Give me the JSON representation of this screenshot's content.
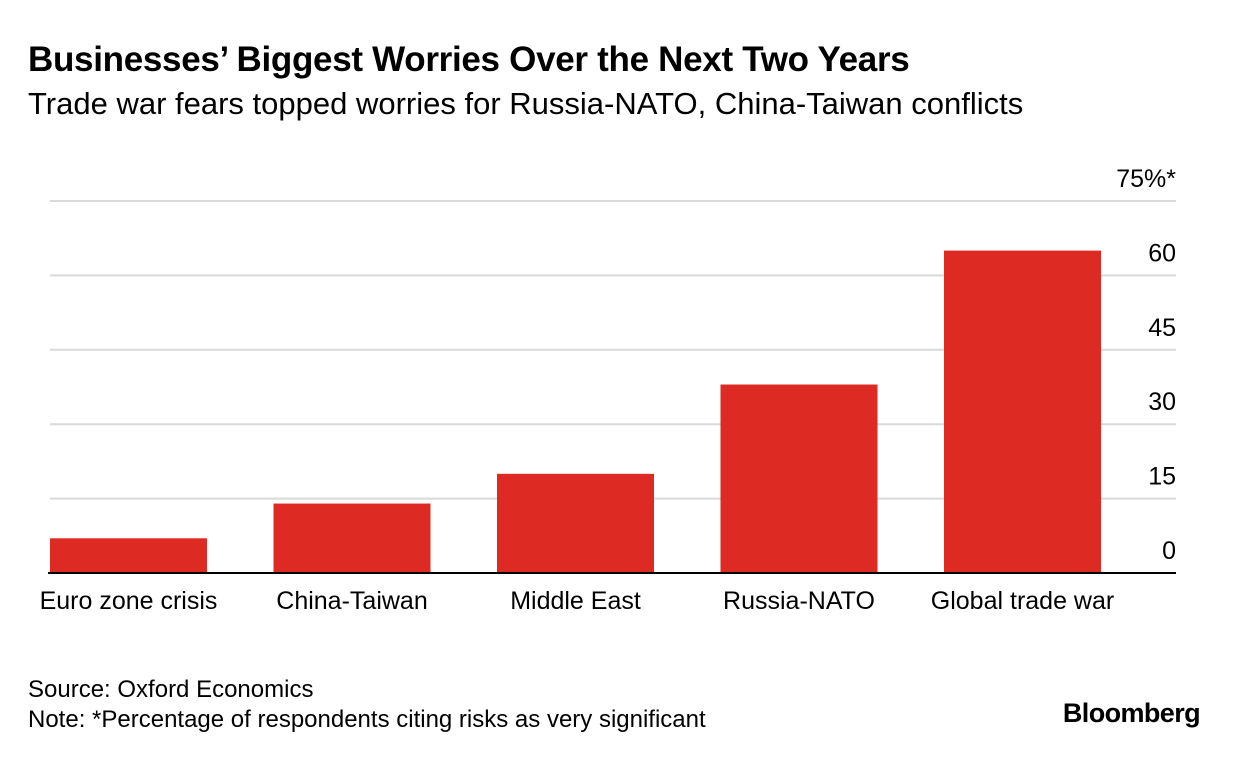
{
  "header": {
    "title": "Businesses’ Biggest Worries Over the Next Two Years",
    "subtitle": "Trade war fears topped worries for Russia-NATO, China-Taiwan conflicts"
  },
  "chart_data": {
    "type": "bar",
    "title": "Businesses’ Biggest Worries Over the Next Two Years",
    "subtitle": "Trade war fears topped worries for Russia-NATO, China-Taiwan conflicts",
    "categories": [
      "Euro zone crisis",
      "China-Taiwan",
      "Middle East",
      "Russia-NATO",
      "Global trade war"
    ],
    "values": [
      7,
      14,
      20,
      38,
      65
    ],
    "ylim": [
      0,
      75
    ],
    "yticks": [
      0,
      15,
      30,
      45,
      60,
      75
    ],
    "ytick_labels": [
      "0",
      "15",
      "30",
      "45",
      "60",
      "75%*"
    ],
    "xlabel": "",
    "ylabel": "",
    "bar_color": "#dd2a22",
    "grid": true,
    "axis_position": "right"
  },
  "footer": {
    "source": "Source: Oxford Economics",
    "note": "Note: *Percentage of respondents citing risks as very significant",
    "brand": "Bloomberg"
  }
}
